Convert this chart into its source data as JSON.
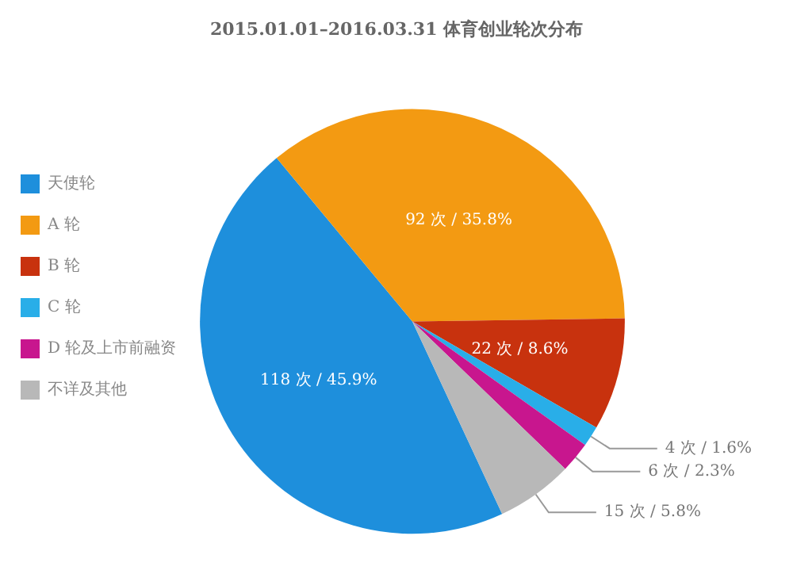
{
  "chart_data": {
    "type": "pie",
    "title": "2015.01.01–2016.03.31 体育创业轮次分布",
    "categories": [
      "天使轮",
      "A 轮",
      "B 轮",
      "C 轮",
      "D 轮及上市前融资",
      "不详及其他"
    ],
    "values": [
      118,
      92,
      22,
      4,
      6,
      15
    ],
    "value_labels": [
      "118 次 / 45.9%",
      "92 次 / 35.8%",
      "22 次 / 8.6%",
      "4 次 / 1.6%",
      "6 次 / 2.3%",
      "15 次 / 5.8%"
    ],
    "colors": [
      "#1e8fdc",
      "#f39a12",
      "#c8320e",
      "#29aee8",
      "#c8168e",
      "#b8b8b8"
    ],
    "legend": "left"
  }
}
